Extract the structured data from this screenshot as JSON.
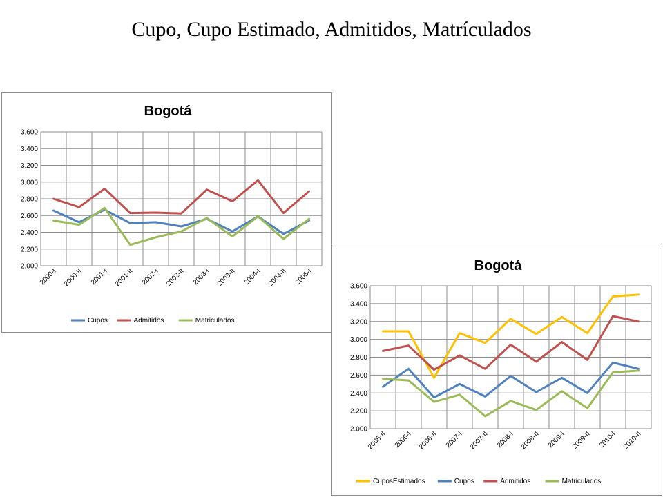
{
  "slide": {
    "title": "Cupo, Cupo Estimado,  Admitidos, Matrículados"
  },
  "chart_data": [
    {
      "type": "line",
      "title": "Bogotá",
      "xlabel": "",
      "ylabel": "",
      "categories": [
        "2000-I",
        "2000-II",
        "2001-I",
        "2001-II",
        "2002-I",
        "2002-II",
        "2003-I",
        "2003-II",
        "2004-I",
        "2004-II",
        "2005-I"
      ],
      "ylim": [
        2000,
        3600
      ],
      "yticks": [
        2000,
        2200,
        2400,
        2600,
        2800,
        3000,
        3200,
        3400,
        3600
      ],
      "ytick_labels": [
        "2.000",
        "2.200",
        "2.400",
        "2.600",
        "2.800",
        "3.000",
        "3.200",
        "3.400",
        "3.600"
      ],
      "grid": true,
      "legend_position": "bottom",
      "series": [
        {
          "name": "Cupos",
          "color": "#4F81BD",
          "values": [
            2660,
            2520,
            2670,
            2510,
            2520,
            2470,
            2560,
            2410,
            2590,
            2380,
            2540
          ]
        },
        {
          "name": "Admitidos",
          "color": "#C0504D",
          "values": [
            2800,
            2700,
            2920,
            2630,
            2635,
            2625,
            2910,
            2770,
            3020,
            2630,
            2890
          ]
        },
        {
          "name": "Matriculados",
          "color": "#9BBB59",
          "values": [
            2540,
            2490,
            2690,
            2250,
            2340,
            2410,
            2570,
            2350,
            2590,
            2320,
            2560
          ]
        }
      ]
    },
    {
      "type": "line",
      "title": "Bogotá",
      "xlabel": "",
      "ylabel": "",
      "categories": [
        "2005-II",
        "2006-I",
        "2006-II",
        "2007-I",
        "2007-II",
        "2008-I",
        "2008-II",
        "2009-I",
        "2009-II",
        "2010-I",
        "2010-II"
      ],
      "ylim": [
        2000,
        3600
      ],
      "yticks": [
        2000,
        2200,
        2400,
        2600,
        2800,
        3000,
        3200,
        3400,
        3600
      ],
      "ytick_labels": [
        "2.000",
        "2.200",
        "2.400",
        "2.600",
        "2.800",
        "3.000",
        "3.200",
        "3.400",
        "3.600"
      ],
      "grid": true,
      "legend_position": "bottom",
      "series": [
        {
          "name": "CuposEstimados",
          "color": "#FFC000",
          "values": [
            3090,
            3090,
            2570,
            3070,
            2960,
            3230,
            3060,
            3250,
            3070,
            3480,
            3500
          ]
        },
        {
          "name": "Cupos",
          "color": "#4F81BD",
          "values": [
            2470,
            2670,
            2350,
            2500,
            2360,
            2590,
            2410,
            2570,
            2400,
            2740,
            2670
          ]
        },
        {
          "name": "Admitidos",
          "color": "#C0504D",
          "values": [
            2870,
            2930,
            2660,
            2820,
            2670,
            2940,
            2750,
            2970,
            2770,
            3260,
            3200
          ]
        },
        {
          "name": "Matriculados",
          "color": "#9BBB59",
          "values": [
            2560,
            2540,
            2300,
            2380,
            2140,
            2310,
            2210,
            2420,
            2230,
            2630,
            2650
          ]
        }
      ]
    }
  ]
}
